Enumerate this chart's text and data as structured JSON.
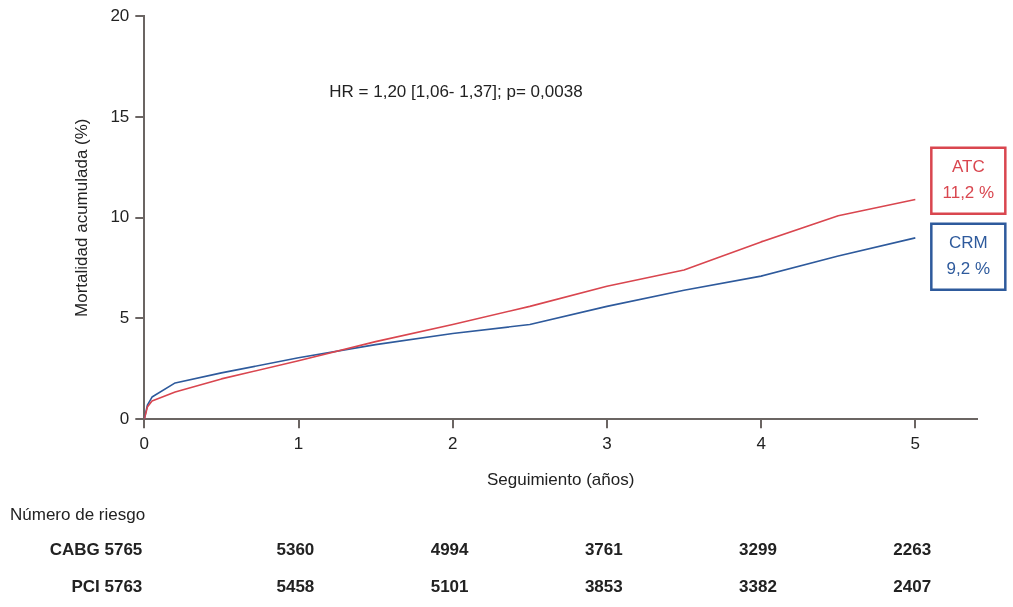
{
  "chart_data": {
    "type": "line",
    "xlabel": "Seguimiento (años)",
    "ylabel": "Mortalidad acumulada (%)",
    "x": [
      0,
      0.02,
      0.05,
      0.2,
      0.5,
      1,
      1.5,
      2,
      2.5,
      3,
      3.5,
      4,
      4.5,
      5
    ],
    "series": [
      {
        "name": "ATC",
        "color": "#d9464f",
        "values": [
          0,
          0.6,
          0.9,
          1.35,
          2.0,
          2.9,
          3.85,
          4.7,
          5.6,
          6.6,
          7.4,
          8.8,
          10.1,
          10.9
        ]
      },
      {
        "name": "CRM",
        "color": "#2e5a9c",
        "values": [
          0,
          0.7,
          1.1,
          1.8,
          2.3,
          3.05,
          3.7,
          4.25,
          4.7,
          5.6,
          6.4,
          7.1,
          8.1,
          9.0
        ]
      }
    ],
    "xlim": [
      0,
      5.4
    ],
    "xticks": [
      0,
      1,
      2,
      3,
      4,
      5
    ],
    "ylim": [
      0,
      20
    ],
    "yticks": [
      0,
      5,
      10,
      15,
      20
    ],
    "grid": false,
    "legend": false,
    "marker": "none",
    "line_style": "solid",
    "annotations": [
      "HR = 1,20 [1,06- 1,37]; p= 0,0038",
      "11,2 %",
      "9,2 %",
      "Número de riesgo",
      "CABG 5765",
      "5360",
      "4994",
      "3761",
      "3299",
      "2263",
      "PCI 5763",
      "5458",
      "5101",
      "3853",
      "3382",
      "2407"
    ]
  }
}
